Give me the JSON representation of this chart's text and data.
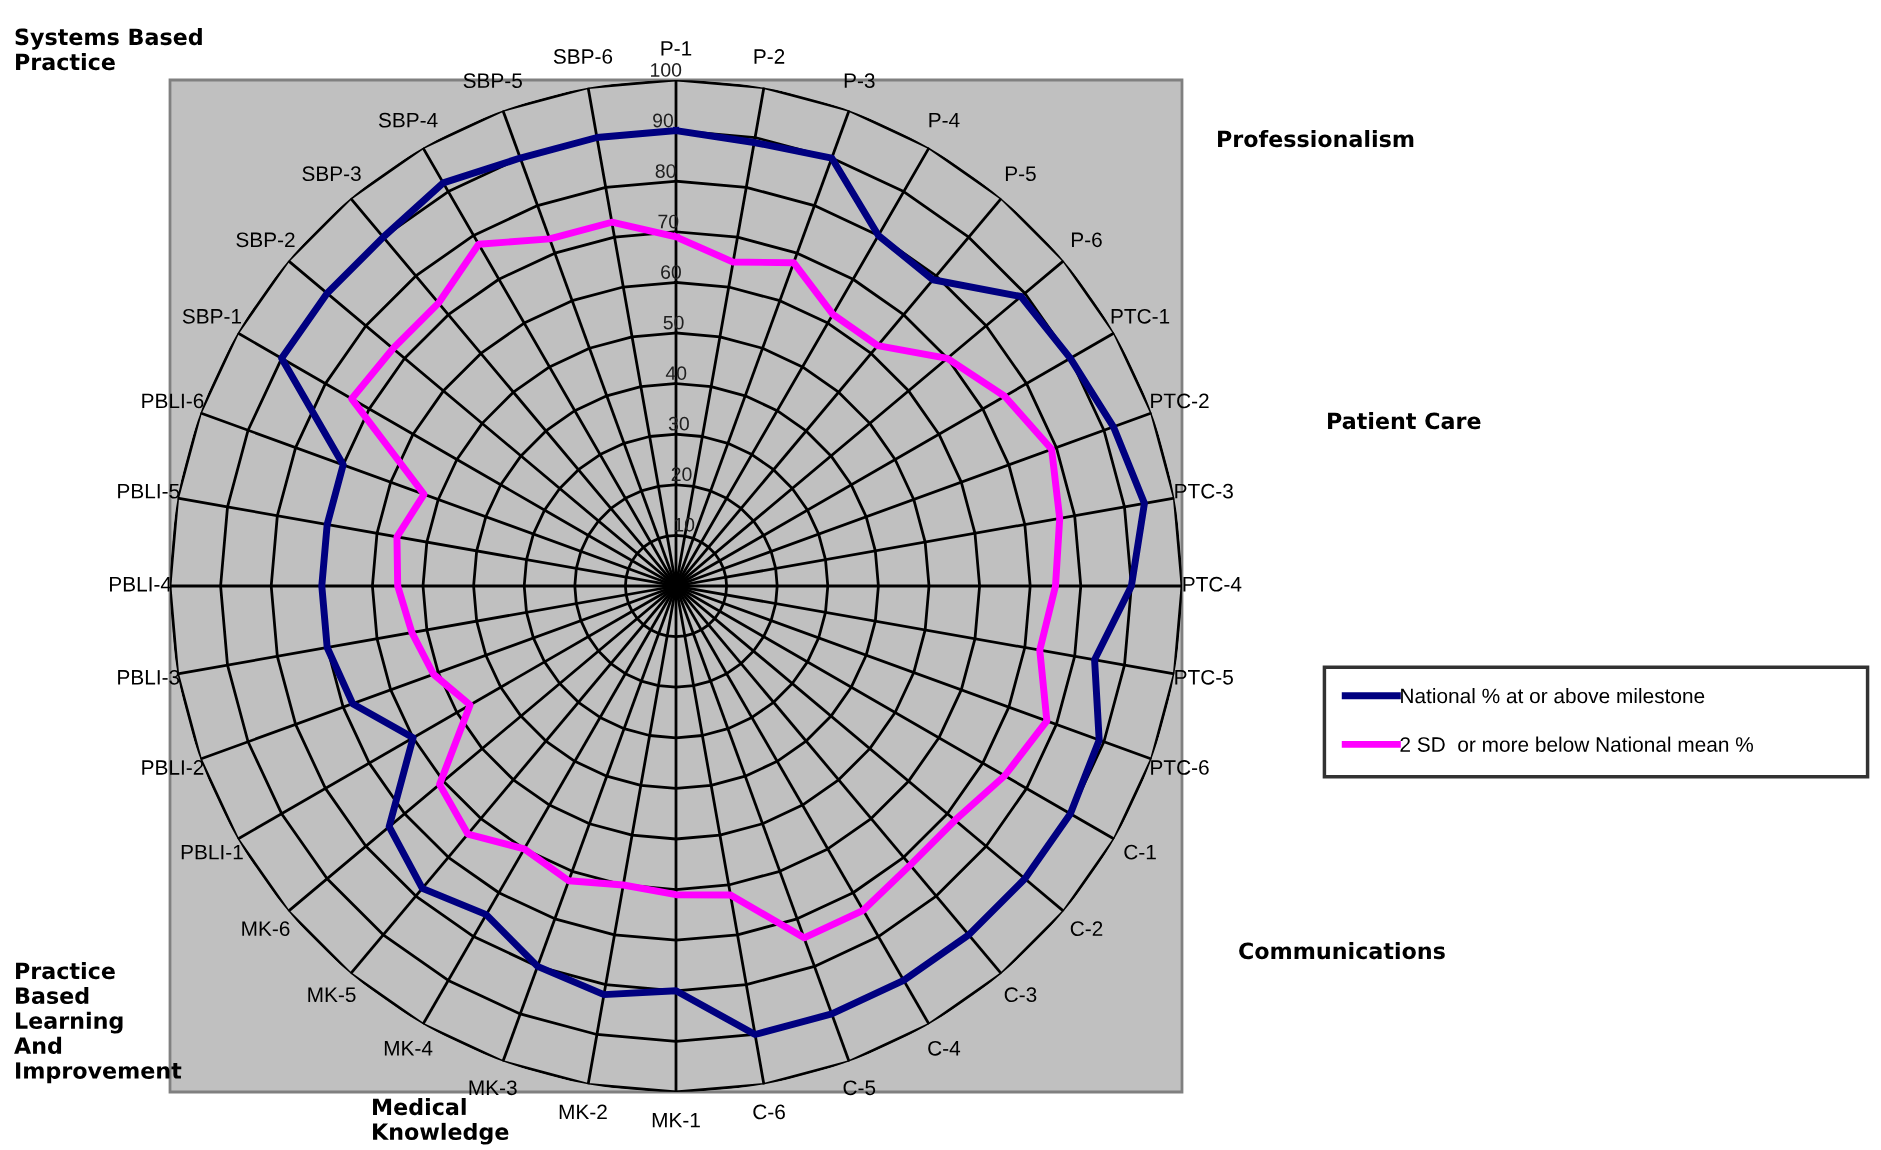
{
  "chart_data": {
    "type": "radar",
    "categories": [
      "P-1",
      "P-2",
      "P-3",
      "P-4",
      "P-5",
      "P-6",
      "PTC-1",
      "PTC-2",
      "PTC-3",
      "PTC-4",
      "PTC-5",
      "PTC-6",
      "C-1",
      "C-2",
      "C-3",
      "C-4",
      "C-5",
      "C-6",
      "MK-1",
      "MK-2",
      "MK-3",
      "MK-4",
      "MK-5",
      "MK-6",
      "PBLI-1",
      "PBLI-2",
      "PBLI-3",
      "PBLI-4",
      "PBLI-5",
      "PBLI-6",
      "SBP-1",
      "SBP-2",
      "SBP-3",
      "SBP-4",
      "SBP-5",
      "SBP-6"
    ],
    "series": [
      {
        "name": "National % at or above milestone",
        "color": "#000080",
        "values": [
          90,
          89,
          90,
          80,
          79,
          89,
          90,
          92,
          94,
          90,
          84,
          89,
          90,
          90,
          90,
          90,
          90,
          90,
          80,
          82,
          80,
          75,
          78,
          74,
          60,
          68,
          70,
          70,
          70,
          70,
          90,
          90,
          90,
          92,
          90,
          90
        ]
      },
      {
        "name": "2 SD  or more below National mean %",
        "color": "#ff00ff",
        "values": [
          69,
          65,
          68,
          62,
          62,
          70,
          75,
          79,
          77,
          75,
          73,
          78,
          75,
          72,
          72,
          74,
          74,
          62,
          61,
          60,
          62,
          60,
          64,
          61,
          47,
          51,
          53,
          55,
          56,
          53,
          74,
          73,
          73,
          78,
          73,
          73
        ]
      }
    ],
    "ylim": [
      0,
      100
    ],
    "yticks": [
      10,
      20,
      30,
      40,
      50,
      60,
      70,
      80,
      90,
      100
    ],
    "grid": true,
    "legend": "right",
    "marker": "none",
    "line_style": "solid",
    "annotations": [
      "Systems Based\nPractice",
      "Professionalism",
      "Patient Care",
      "Communications",
      "Practice\nBased\nLearning\nAnd\nImprovement",
      "Medical\nKnowledge"
    ]
  }
}
